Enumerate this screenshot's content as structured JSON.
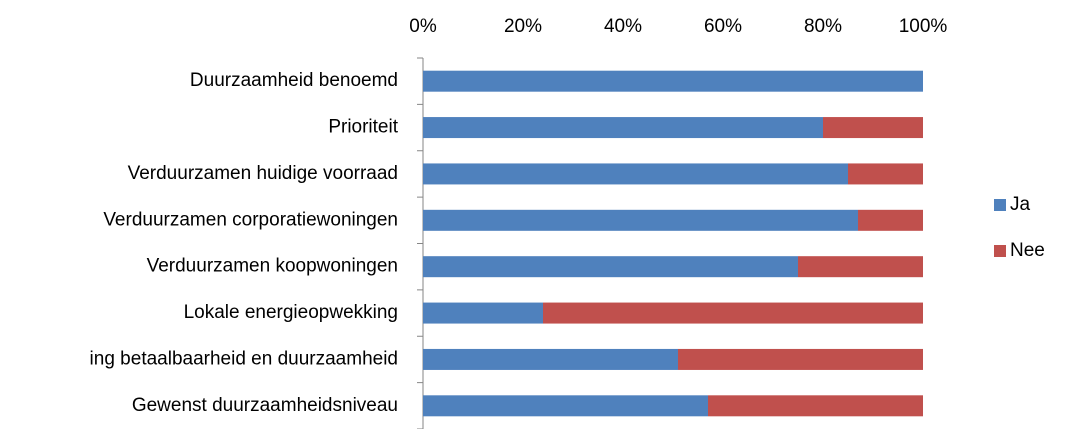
{
  "chart_data": {
    "type": "stacked-bar-horizontal",
    "categories": [
      "Duurzaamheid benoemd",
      "Prioriteit",
      "Verduurzamen huidige voorraad",
      "Verduurzamen corporatiewoningen",
      "Verduurzamen koopwoningen",
      "Lokale energieopwekking",
      "ing betaalbaarheid en duurzaamheid",
      "Gewenst duurzaamheidsniveau"
    ],
    "series": [
      {
        "name": "Ja",
        "color": "#4f81bd",
        "values": [
          100,
          80,
          85,
          87,
          75,
          24,
          51,
          57
        ]
      },
      {
        "name": "Nee",
        "color": "#c0504d",
        "values": [
          0,
          20,
          15,
          13,
          25,
          76,
          49,
          43
        ]
      }
    ],
    "xlim": [
      0,
      100
    ],
    "xticks": [
      {
        "value": 0,
        "label": "0%"
      },
      {
        "value": 20,
        "label": "20%"
      },
      {
        "value": 40,
        "label": "40%"
      },
      {
        "value": 60,
        "label": "60%"
      },
      {
        "value": 80,
        "label": "80%"
      },
      {
        "value": 100,
        "label": "100%"
      }
    ],
    "legend": "right"
  }
}
